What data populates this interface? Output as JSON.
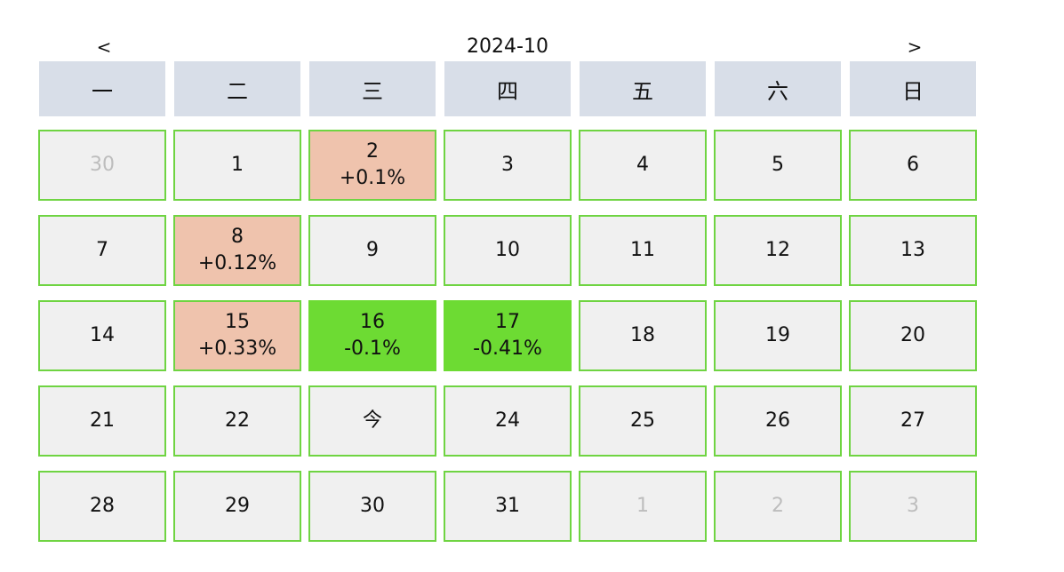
{
  "nav": {
    "prev_label": "<",
    "next_label": ">",
    "title": "2024-10"
  },
  "weekdays": [
    "一",
    "二",
    "三",
    "四",
    "五",
    "六",
    "日"
  ],
  "days": [
    {
      "label": "30",
      "change": "",
      "other_month": true
    },
    {
      "label": "1",
      "change": "",
      "other_month": false
    },
    {
      "label": "2",
      "change": "+0.1%",
      "trend": "up",
      "other_month": false
    },
    {
      "label": "3",
      "change": "",
      "other_month": false
    },
    {
      "label": "4",
      "change": "",
      "other_month": false
    },
    {
      "label": "5",
      "change": "",
      "other_month": false
    },
    {
      "label": "6",
      "change": "",
      "other_month": false
    },
    {
      "label": "7",
      "change": "",
      "other_month": false
    },
    {
      "label": "8",
      "change": "+0.12%",
      "trend": "up",
      "other_month": false
    },
    {
      "label": "9",
      "change": "",
      "other_month": false
    },
    {
      "label": "10",
      "change": "",
      "other_month": false
    },
    {
      "label": "11",
      "change": "",
      "other_month": false
    },
    {
      "label": "12",
      "change": "",
      "other_month": false
    },
    {
      "label": "13",
      "change": "",
      "other_month": false
    },
    {
      "label": "14",
      "change": "",
      "other_month": false
    },
    {
      "label": "15",
      "change": "+0.33%",
      "trend": "up",
      "other_month": false
    },
    {
      "label": "16",
      "change": "-0.1%",
      "trend": "down",
      "other_month": false
    },
    {
      "label": "17",
      "change": "-0.41%",
      "trend": "down",
      "other_month": false
    },
    {
      "label": "18",
      "change": "",
      "other_month": false
    },
    {
      "label": "19",
      "change": "",
      "other_month": false
    },
    {
      "label": "20",
      "change": "",
      "other_month": false
    },
    {
      "label": "21",
      "change": "",
      "other_month": false
    },
    {
      "label": "22",
      "change": "",
      "other_month": false
    },
    {
      "label": "今",
      "change": "",
      "other_month": false,
      "today": true
    },
    {
      "label": "24",
      "change": "",
      "other_month": false
    },
    {
      "label": "25",
      "change": "",
      "other_month": false
    },
    {
      "label": "26",
      "change": "",
      "other_month": false
    },
    {
      "label": "27",
      "change": "",
      "other_month": false
    },
    {
      "label": "28",
      "change": "",
      "other_month": false
    },
    {
      "label": "29",
      "change": "",
      "other_month": false
    },
    {
      "label": "30",
      "change": "",
      "other_month": false
    },
    {
      "label": "31",
      "change": "",
      "other_month": false
    },
    {
      "label": "1",
      "change": "",
      "other_month": true
    },
    {
      "label": "2",
      "change": "",
      "other_month": true
    },
    {
      "label": "3",
      "change": "",
      "other_month": true
    }
  ],
  "colors": {
    "up_bg": "#efc3ad",
    "down_bg": "#6ddb33",
    "cell_border": "#6fd442",
    "cell_bg": "#f0f0f0",
    "weekday_bg": "#d8dee8",
    "other_month_text": "#bdbdbd"
  }
}
